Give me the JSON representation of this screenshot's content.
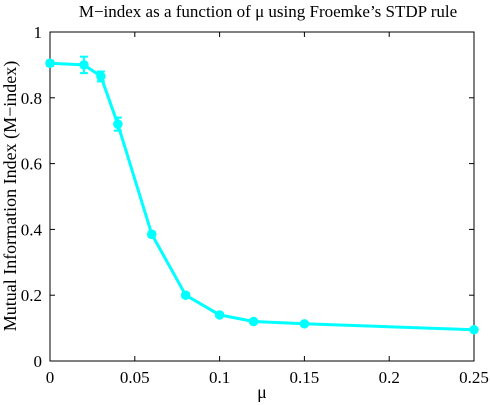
{
  "chart_data": {
    "type": "line",
    "title": "M−index as a function of μ using Froemke’s STDP rule",
    "xlabel": "μ",
    "ylabel": "Mutual Information Index (M−index)",
    "xlim": [
      0,
      0.25
    ],
    "ylim": [
      0,
      1
    ],
    "xticks": [
      0,
      0.05,
      0.1,
      0.15,
      0.2,
      0.25
    ],
    "xtick_labels": [
      "0",
      "0.05",
      "0.1",
      "0.15",
      "0.2",
      "0.25"
    ],
    "yticks": [
      0,
      0.2,
      0.4,
      0.6,
      0.8,
      1
    ],
    "ytick_labels": [
      "0",
      "0.2",
      "0.4",
      "0.6",
      "0.8",
      "1"
    ],
    "grid": false,
    "color": "#00ffff",
    "series": [
      {
        "x": [
          0,
          0.02,
          0.03,
          0.04,
          0.06,
          0.08,
          0.1,
          0.12,
          0.15,
          0.25
        ],
        "y": [
          0.905,
          0.9,
          0.865,
          0.72,
          0.385,
          0.2,
          0.14,
          0.12,
          0.113,
          0.095
        ],
        "err": [
          0.008,
          0.025,
          0.015,
          0.02,
          0.008,
          0.007,
          0.006,
          0.005,
          0.005,
          0.004
        ]
      }
    ]
  }
}
